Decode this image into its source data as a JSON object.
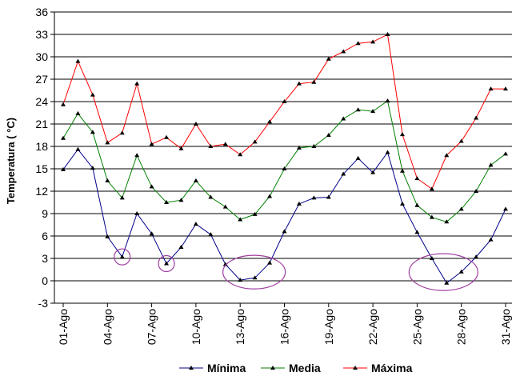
{
  "chart_data": {
    "type": "line",
    "ylabel": "Temperatura ( °C)",
    "ylim": [
      -3,
      36
    ],
    "yticks": [
      -3,
      0,
      3,
      6,
      9,
      12,
      15,
      18,
      21,
      24,
      27,
      30,
      33,
      36
    ],
    "grid": "horizontal",
    "legend_position": "bottom",
    "x": [
      "01-Ago",
      "02-Ago",
      "03-Ago",
      "04-Ago",
      "05-Ago",
      "06-Ago",
      "07-Ago",
      "08-Ago",
      "09-Ago",
      "10-Ago",
      "11-Ago",
      "12-Ago",
      "13-Ago",
      "14-Ago",
      "15-Ago",
      "16-Ago",
      "17-Ago",
      "18-Ago",
      "19-Ago",
      "20-Ago",
      "21-Ago",
      "22-Ago",
      "23-Ago",
      "24-Ago",
      "25-Ago",
      "26-Ago",
      "27-Ago",
      "28-Ago",
      "29-Ago",
      "30-Ago",
      "31-Ago"
    ],
    "xtick_labels": [
      "01-Ago",
      "04-Ago",
      "07-Ago",
      "10-Ago",
      "13-Ago",
      "16-Ago",
      "19-Ago",
      "22-Ago",
      "25-Ago",
      "28-Ago",
      "31-Ago"
    ],
    "series": [
      {
        "name": "Mínima",
        "color": "#00008b",
        "values": [
          14.9,
          17.6,
          15.1,
          5.9,
          3.2,
          9.0,
          6.3,
          2.3,
          4.5,
          7.6,
          6.2,
          2.2,
          0.1,
          0.4,
          2.4,
          6.6,
          10.3,
          11.1,
          11.2,
          14.3,
          16.4,
          14.5,
          17.2,
          10.3,
          6.5,
          3.0,
          -0.3,
          1.2,
          3.2,
          5.5,
          9.6
        ]
      },
      {
        "name": "Media",
        "color": "#008000",
        "values": [
          19.1,
          22.4,
          19.9,
          13.4,
          11.1,
          16.8,
          12.6,
          10.5,
          10.8,
          13.4,
          11.2,
          9.9,
          8.2,
          8.9,
          11.3,
          15.0,
          17.8,
          18.0,
          19.5,
          21.7,
          22.9,
          22.7,
          24.1,
          14.7,
          10.1,
          8.5,
          7.9,
          9.6,
          12.0,
          15.5,
          17.0
        ]
      },
      {
        "name": "Máxima",
        "color": "#ff0000",
        "values": [
          23.6,
          29.4,
          24.9,
          18.5,
          19.8,
          26.4,
          18.3,
          19.2,
          17.7,
          21.0,
          18.0,
          18.3,
          16.9,
          18.6,
          21.3,
          24.0,
          26.4,
          26.6,
          29.7,
          30.7,
          31.8,
          32.0,
          33.0,
          19.6,
          13.7,
          12.3,
          16.8,
          18.7,
          21.8,
          25.7,
          25.7
        ]
      }
    ],
    "annotations": [
      {
        "shape": "ellipse",
        "x": "05-Ago",
        "y": 3.2
      },
      {
        "shape": "ellipse",
        "x": "08-Ago",
        "y": 2.3
      },
      {
        "shape": "ellipse",
        "x": "14-Ago",
        "y": 1.7
      },
      {
        "shape": "ellipse",
        "x": "27-Ago",
        "y": 1.7
      }
    ]
  }
}
